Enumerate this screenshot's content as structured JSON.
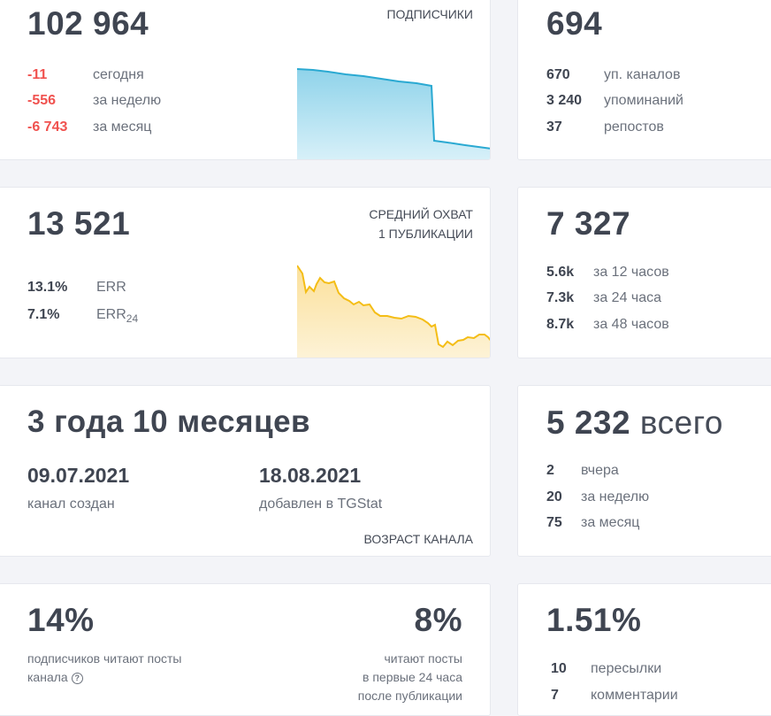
{
  "subscribers": {
    "value": "102 964",
    "caption": "ПОДПИСЧИКИ",
    "rows": [
      {
        "num": "-11",
        "label": "сегодня"
      },
      {
        "num": "-556",
        "label": "за неделю"
      },
      {
        "num": "-6 743",
        "label": "за месяц"
      }
    ],
    "color": "#2aa9d2"
  },
  "mentions": {
    "value": "694",
    "rows": [
      {
        "num": "670",
        "label": "уп. каналов"
      },
      {
        "num": "3 240",
        "label": "упоминаний"
      },
      {
        "num": "37",
        "label": "репостов"
      }
    ]
  },
  "reach": {
    "value": "13 521",
    "caption_line1": "СРЕДНИЙ ОХВАТ",
    "caption_line2": "1 ПУБЛИКАЦИИ",
    "err": {
      "num": "13.1%",
      "label": "ERR"
    },
    "err24": {
      "num": "7.1%",
      "label": "ERR",
      "sub": "24"
    },
    "color": "#f4bd16"
  },
  "views": {
    "value": "7 327",
    "rows": [
      {
        "num": "5.6k",
        "label": "за 12 часов"
      },
      {
        "num": "7.3k",
        "label": "за 24 часа"
      },
      {
        "num": "8.7k",
        "label": "за 48 часов"
      }
    ]
  },
  "age": {
    "value": "3 года 10 месяцев",
    "created_date": "09.07.2021",
    "created_label": "канал создан",
    "added_date": "18.08.2021",
    "added_label": "добавлен в TGStat",
    "caption": "ВОЗРАСТ КАНАЛА"
  },
  "posts": {
    "value": "5 232",
    "value_suffix": "всего",
    "rows": [
      {
        "num": "2",
        "label": "вчера"
      },
      {
        "num": "20",
        "label": "за неделю"
      },
      {
        "num": "75",
        "label": "за месяц"
      }
    ]
  },
  "readers": {
    "left_value": "14%",
    "left_line1": "подписчиков читают посты",
    "left_line2": "канала",
    "help_icon": "?",
    "right_value": "8%",
    "right_line1": "читают посты",
    "right_line2": "в первые 24 часа",
    "right_line3": "после публикации"
  },
  "engagement": {
    "value": "1.51%",
    "rows": [
      {
        "num": "10",
        "label": "пересылки"
      },
      {
        "num": "7",
        "label": "комментарии"
      }
    ]
  }
}
